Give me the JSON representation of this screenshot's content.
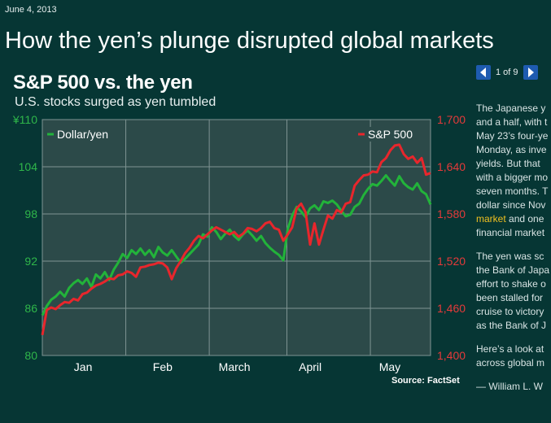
{
  "date": "June 4, 2013",
  "headline": "How the yen’s plunge disrupted global markets",
  "pager": {
    "text": "1 of 9"
  },
  "chart_title": "S&P 500 vs. the yen",
  "chart_subtitle": "U.S. stocks surged as yen tumbled",
  "source": "Source: FactSet",
  "article": {
    "p1": [
      "The Japanese y",
      "and a half, with t",
      "May 23’s four-ye",
      "Monday, as inve",
      "yields. But that",
      "with a bigger mo",
      "seven months. T",
      "dollar since Nov"
    ],
    "p1_link": "market",
    "p1_link_rest": " and one",
    "p1_last": "financial market",
    "p2": [
      "The yen was sc",
      "the Bank of Japa",
      "effort to shake o",
      "been stalled for",
      "cruise to victory",
      "as the Bank of J"
    ],
    "p3": [
      "Here’s a look at",
      "across global m"
    ],
    "byline": "— William L. W"
  },
  "chart_data": {
    "type": "line",
    "x_ticks": [
      "Jan",
      "Feb",
      "March",
      "April",
      "May"
    ],
    "left_axis": {
      "ticks": [
        "¥110",
        "104",
        "98",
        "92",
        "86",
        "80"
      ],
      "ylim": [
        80,
        110
      ]
    },
    "right_axis": {
      "ticks": [
        "1,700",
        "1,640",
        "1,580",
        "1,520",
        "1,460",
        "1,400"
      ],
      "ylim": [
        1400,
        1700
      ]
    },
    "colors": {
      "yen": "#22b33a",
      "sp": "#e8262c",
      "left_ticks": "#2fb64a",
      "right_ticks": "#e53a3a"
    },
    "grid": true,
    "series": [
      {
        "name": "Dollar/yen",
        "axis": "left",
        "legend": "top-left",
        "values": [
          85.1,
          86.3,
          87.1,
          87.5,
          88.1,
          87.5,
          88.6,
          89.2,
          89.6,
          89.1,
          89.8,
          88.7,
          90.3,
          89.8,
          90.6,
          89.6,
          90.9,
          91.8,
          92.9,
          92.4,
          93.4,
          92.9,
          93.6,
          92.8,
          93.4,
          92.5,
          93.8,
          93.1,
          92.7,
          93.4,
          92.6,
          91.8,
          92.3,
          92.9,
          93.5,
          94.1,
          95.4,
          95.1,
          96.3,
          95.7,
          94.8,
          95.5,
          96.0,
          95.2,
          94.7,
          95.4,
          95.9,
          95.3,
          94.6,
          95.2,
          94.3,
          93.7,
          93.2,
          92.8,
          92.1,
          96.1,
          97.8,
          98.9,
          98.3,
          97.6,
          98.7,
          99.1,
          98.5,
          99.6,
          99.4,
          99.7,
          99.2,
          98.4,
          97.7,
          97.9,
          98.9,
          99.3,
          100.4,
          101.2,
          101.8,
          101.6,
          102.2,
          102.9,
          102.2,
          101.6,
          102.8,
          101.9,
          101.4,
          101.1,
          101.9,
          100.9,
          100.5,
          99.2
        ]
      },
      {
        "name": "S&P 500",
        "axis": "right",
        "legend": "top-right",
        "values": [
          1426,
          1458,
          1461,
          1459,
          1464,
          1468,
          1467,
          1472,
          1470,
          1478,
          1480,
          1485,
          1489,
          1491,
          1494,
          1498,
          1497,
          1502,
          1503,
          1507,
          1505,
          1500,
          1512,
          1513,
          1515,
          1516,
          1518,
          1517,
          1512,
          1497,
          1511,
          1520,
          1530,
          1537,
          1546,
          1552,
          1549,
          1554,
          1559,
          1563,
          1560,
          1557,
          1554,
          1557,
          1551,
          1555,
          1562,
          1561,
          1558,
          1562,
          1568,
          1570,
          1562,
          1560,
          1546,
          1554,
          1563,
          1587,
          1593,
          1582,
          1541,
          1568,
          1541,
          1560,
          1578,
          1574,
          1585,
          1582,
          1593,
          1595,
          1616,
          1623,
          1629,
          1630,
          1634,
          1633,
          1646,
          1651,
          1661,
          1667,
          1668,
          1656,
          1650,
          1653,
          1645,
          1651,
          1630,
          1632
        ]
      }
    ]
  }
}
